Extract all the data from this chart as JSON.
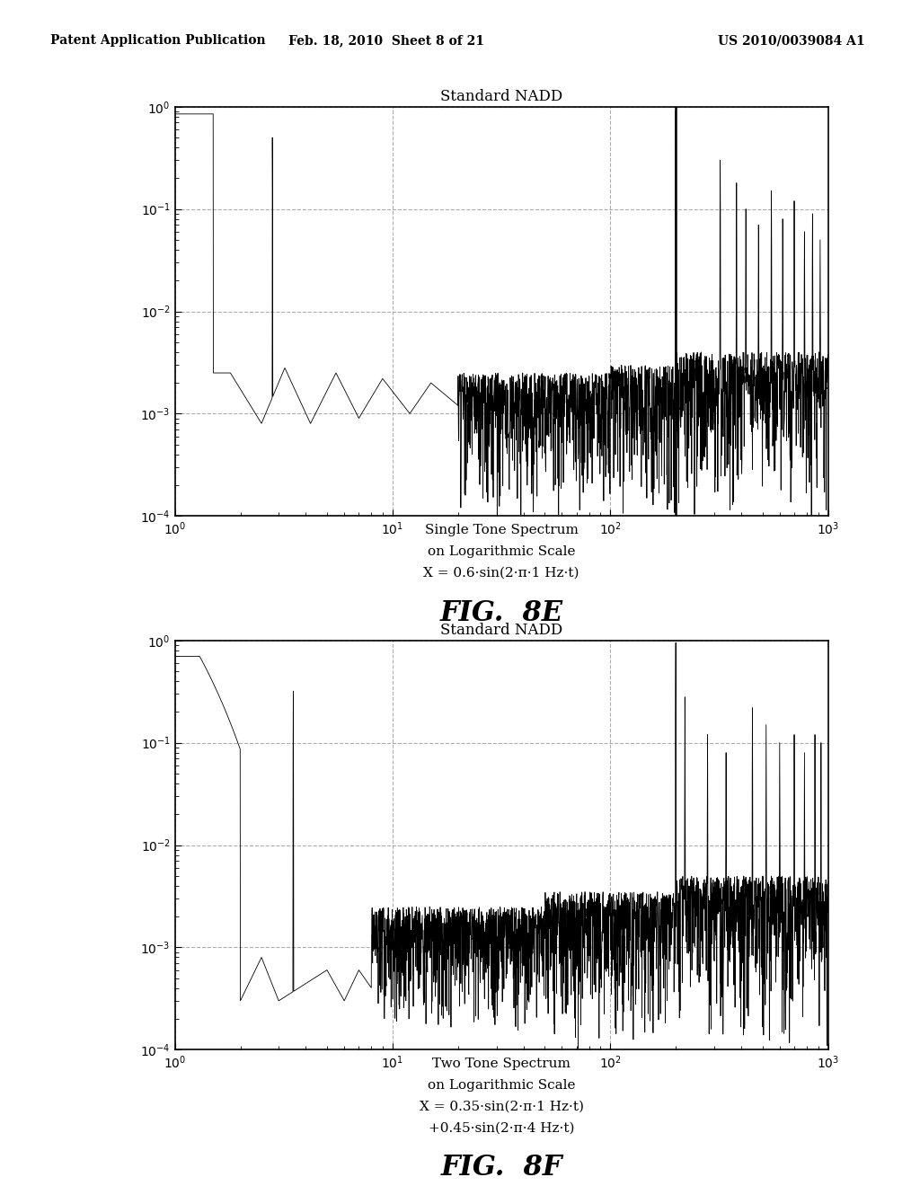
{
  "header_left": "Patent Application Publication",
  "header_center": "Feb. 18, 2010  Sheet 8 of 21",
  "header_right": "US 2010/0039084 A1",
  "fig_label_E": "FIG.  8E",
  "fig_label_F": "FIG.  8F",
  "title_E": "Standard NADD",
  "title_F": "Standard NADD",
  "xlabel_E_line1": "Single Tone Spectrum",
  "xlabel_E_line2": "on Logarithmic Scale",
  "xlabel_E_line3": "X = 0.6·sin(2·π·1 Hz·t)",
  "xlabel_F_line1": "Two Tone Spectrum",
  "xlabel_F_line2": "on Logarithmic Scale",
  "xlabel_F_line3": "X = 0.35·sin(2·π·1 Hz·t)",
  "xlabel_F_line4": "+0.45·sin(2·π·4 Hz·t)",
  "ylim": [
    0.0001,
    1.0
  ],
  "xlim": [
    1.0,
    1000.0
  ],
  "background_color": "#ffffff",
  "line_color": "#000000",
  "grid_color": "#999999",
  "header_fontsize": 10,
  "title_fontsize": 12,
  "label_fontsize": 11,
  "fig_label_fontsize": 22
}
